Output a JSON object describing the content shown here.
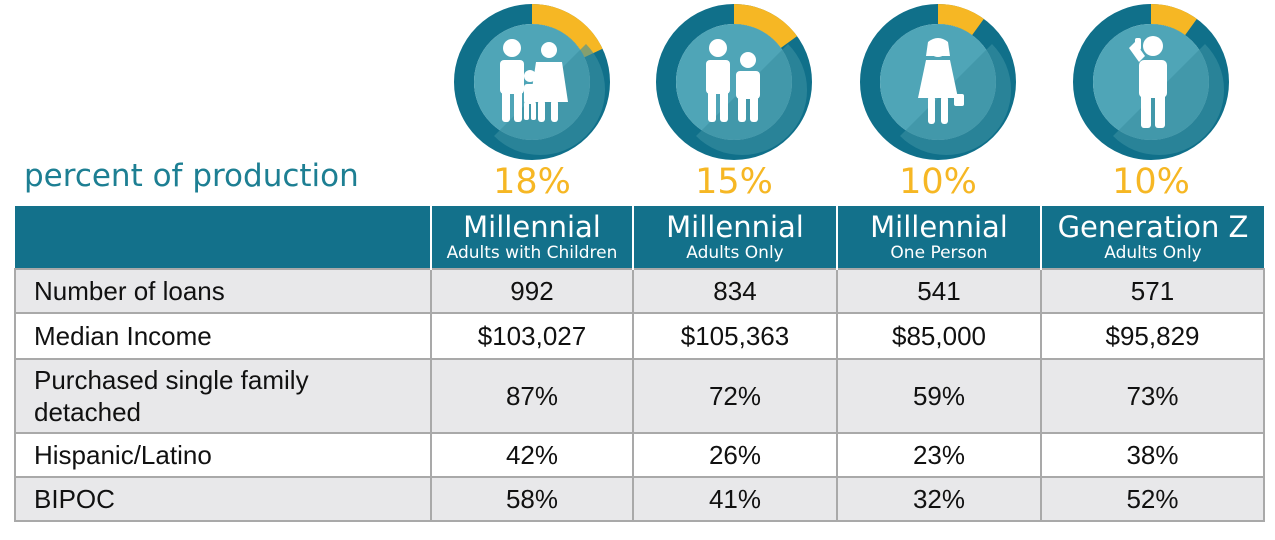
{
  "chart_data": {
    "type": "table",
    "title": "percent of production",
    "segments": [
      {
        "title": "Millennial",
        "subtitle": "Adults with Children",
        "percent": "18%",
        "value": 18,
        "icon": "family-icon"
      },
      {
        "title": "Millennial",
        "subtitle": "Adults Only",
        "percent": "15%",
        "value": 15,
        "icon": "couple-icon"
      },
      {
        "title": "Millennial",
        "subtitle": "One Person",
        "percent": "10%",
        "value": 10,
        "icon": "woman-icon"
      },
      {
        "title": "Generation Z",
        "subtitle": "Adults Only",
        "percent": "10%",
        "value": 10,
        "icon": "person-phone-icon"
      }
    ],
    "rows": [
      {
        "label": "Number of loans",
        "values": [
          "992",
          "834",
          "541",
          "571"
        ]
      },
      {
        "label": "Median Income",
        "values": [
          "$103,027",
          "$105,363",
          "$85,000",
          "$95,829"
        ]
      },
      {
        "label": "Purchased single family detached",
        "values": [
          "87%",
          "72%",
          "59%",
          "73%"
        ]
      },
      {
        "label": "Hispanic/Latino",
        "values": [
          "42%",
          "26%",
          "23%",
          "38%"
        ]
      },
      {
        "label": "BIPOC",
        "values": [
          "58%",
          "41%",
          "32%",
          "52%"
        ]
      }
    ]
  },
  "colors": {
    "ring": "#10708a",
    "accent": "#f6b724",
    "inner": "#4fa5b7",
    "header": "#13718b",
    "title_text": "#1d7f93"
  }
}
